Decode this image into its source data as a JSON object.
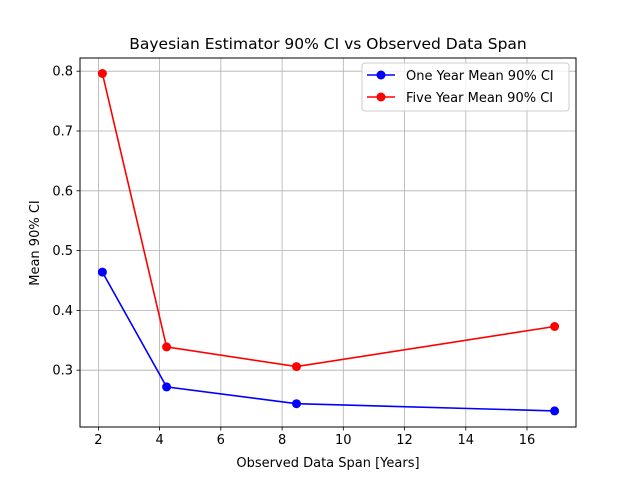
{
  "chart_data": {
    "type": "line",
    "title": "Bayesian Estimator 90% CI vs Observed Data Span",
    "xlabel": "Observed Data Span [Years]",
    "ylabel": "Mean 90% CI",
    "xlim": [
      1.4,
      17.6
    ],
    "ylim": [
      0.205,
      0.822
    ],
    "xticks": [
      2,
      4,
      6,
      8,
      10,
      12,
      14,
      16
    ],
    "yticks": [
      0.3,
      0.4,
      0.5,
      0.6,
      0.7,
      0.8
    ],
    "grid": true,
    "legend_position": "top-right",
    "series": [
      {
        "name": "One Year Mean 90% CI",
        "color": "#0000ff",
        "marker": "circle",
        "x": [
          2.13,
          4.23,
          8.47,
          16.9
        ],
        "y": [
          0.464,
          0.272,
          0.244,
          0.232
        ]
      },
      {
        "name": "Five Year Mean 90% CI",
        "color": "#ff0000",
        "marker": "circle",
        "x": [
          2.13,
          4.23,
          8.47,
          16.9
        ],
        "y": [
          0.796,
          0.339,
          0.306,
          0.373
        ]
      }
    ]
  }
}
